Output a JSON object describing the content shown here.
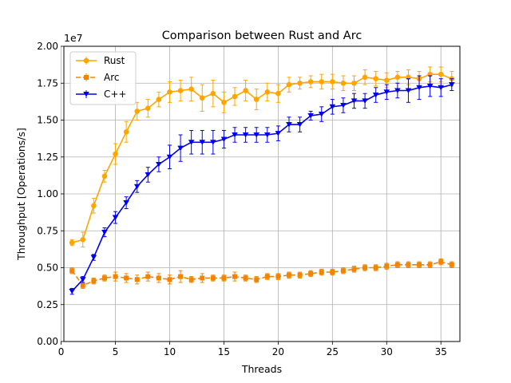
{
  "chart_data": {
    "type": "line",
    "title": "Comparison between Rust and Arc",
    "xlabel": "Threads",
    "ylabel": "Throughput [Operations/s]",
    "y_offset_label": "1e7",
    "y_scale": 10000000,
    "xlim": [
      0.25,
      36.75
    ],
    "ylim": [
      0,
      2.0
    ],
    "xticks": [
      0,
      5,
      10,
      15,
      20,
      25,
      30,
      35
    ],
    "yticks": [
      0.0,
      0.25,
      0.5,
      0.75,
      1.0,
      1.25,
      1.5,
      1.75,
      2.0
    ],
    "ytick_labels": [
      "0.00",
      "0.25",
      "0.50",
      "0.75",
      "1.00",
      "1.25",
      "1.50",
      "1.75",
      "2.00"
    ],
    "grid": true,
    "legend_position": "top-left",
    "x": [
      1,
      2,
      3,
      4,
      5,
      6,
      7,
      8,
      9,
      10,
      11,
      12,
      13,
      14,
      15,
      16,
      17,
      18,
      19,
      20,
      21,
      22,
      23,
      24,
      25,
      26,
      27,
      28,
      29,
      30,
      31,
      32,
      33,
      34,
      35,
      36
    ],
    "series": [
      {
        "name": "Rust",
        "color": "#ffa500",
        "marker": "circle",
        "line_style": "solid",
        "values": [
          0.67,
          0.69,
          0.92,
          1.12,
          1.27,
          1.42,
          1.56,
          1.58,
          1.64,
          1.69,
          1.7,
          1.71,
          1.65,
          1.68,
          1.62,
          1.66,
          1.7,
          1.64,
          1.69,
          1.68,
          1.74,
          1.75,
          1.76,
          1.76,
          1.76,
          1.75,
          1.75,
          1.79,
          1.78,
          1.77,
          1.79,
          1.79,
          1.78,
          1.81,
          1.81,
          1.78
        ],
        "errors": [
          0.02,
          0.05,
          0.05,
          0.04,
          0.07,
          0.07,
          0.06,
          0.06,
          0.05,
          0.07,
          0.07,
          0.08,
          0.09,
          0.09,
          0.07,
          0.06,
          0.07,
          0.07,
          0.06,
          0.06,
          0.05,
          0.04,
          0.04,
          0.05,
          0.05,
          0.05,
          0.05,
          0.05,
          0.05,
          0.05,
          0.04,
          0.05,
          0.05,
          0.05,
          0.05,
          0.05
        ]
      },
      {
        "name": "Arc",
        "color": "#f28500",
        "marker": "square",
        "line_style": "dashed",
        "values": [
          0.48,
          0.38,
          0.41,
          0.43,
          0.44,
          0.43,
          0.42,
          0.44,
          0.43,
          0.42,
          0.44,
          0.42,
          0.43,
          0.43,
          0.43,
          0.44,
          0.43,
          0.42,
          0.44,
          0.44,
          0.45,
          0.45,
          0.46,
          0.47,
          0.47,
          0.48,
          0.49,
          0.5,
          0.5,
          0.51,
          0.52,
          0.52,
          0.52,
          0.52,
          0.54,
          0.52
        ],
        "errors": [
          0.02,
          0.02,
          0.02,
          0.02,
          0.03,
          0.03,
          0.03,
          0.03,
          0.03,
          0.03,
          0.04,
          0.02,
          0.03,
          0.02,
          0.02,
          0.03,
          0.02,
          0.02,
          0.02,
          0.02,
          0.02,
          0.02,
          0.02,
          0.02,
          0.02,
          0.02,
          0.02,
          0.02,
          0.02,
          0.02,
          0.02,
          0.02,
          0.02,
          0.02,
          0.02,
          0.02
        ]
      },
      {
        "name": "C++",
        "color": "#0000ee",
        "marker": "triangle-down",
        "line_style": "solid",
        "values": [
          0.34,
          0.42,
          0.57,
          0.74,
          0.84,
          0.94,
          1.05,
          1.13,
          1.2,
          1.25,
          1.31,
          1.35,
          1.35,
          1.35,
          1.37,
          1.4,
          1.4,
          1.4,
          1.4,
          1.41,
          1.47,
          1.47,
          1.53,
          1.54,
          1.59,
          1.6,
          1.63,
          1.63,
          1.67,
          1.69,
          1.7,
          1.7,
          1.72,
          1.73,
          1.72,
          1.74
        ],
        "errors": [
          0.02,
          0.02,
          0.02,
          0.03,
          0.04,
          0.04,
          0.04,
          0.05,
          0.05,
          0.08,
          0.09,
          0.08,
          0.08,
          0.08,
          0.06,
          0.05,
          0.05,
          0.05,
          0.05,
          0.05,
          0.05,
          0.05,
          0.03,
          0.05,
          0.05,
          0.05,
          0.05,
          0.05,
          0.05,
          0.05,
          0.05,
          0.08,
          0.08,
          0.07,
          0.06,
          0.04
        ]
      }
    ]
  }
}
